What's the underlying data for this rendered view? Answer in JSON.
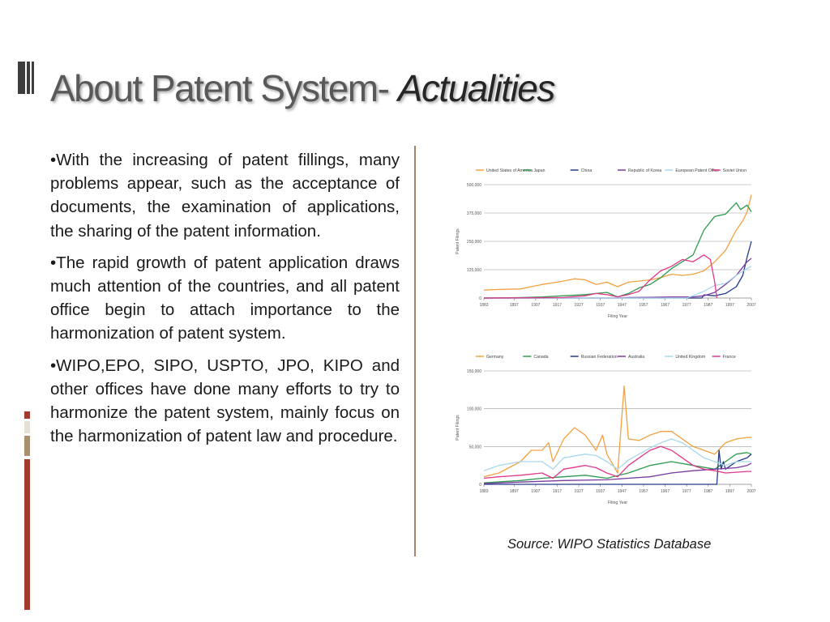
{
  "slide": {
    "title_main": "About Patent System- ",
    "title_italic": "Actualities",
    "bullets": [
      "•With the increasing of patent fillings, many problems appear, such as the acceptance of documents, the examination of applications, the sharing of the patent information.",
      "•The rapid growth of patent application draws much attention of the countries, and all patent office begin to attach importance to the harmonization of patent system.",
      "•WIPO,EPO, SIPO, USPTO, JPO, KIPO and other offices have done many efforts to try to harmonize the patent system, mainly focus on the harmonization of patent law and procedure."
    ],
    "source": "Source: WIPO Statistics Database",
    "colors": {
      "accent_red": "#a33a2b",
      "accent_tan": "#a89070",
      "divider": "#a9826c"
    }
  },
  "chart_data": [
    {
      "type": "line",
      "xlabel": "Filing Year",
      "ylabel": "Patent Filings",
      "xlim": [
        1883,
        2007
      ],
      "ylim": [
        0,
        500000
      ],
      "yticks": [
        "0",
        "125,000",
        "250,000",
        "375,000",
        "500,000"
      ],
      "ytick_values": [
        0,
        125000,
        250000,
        375000,
        500000
      ],
      "xticks": [
        "1883",
        "1897",
        "1907",
        "1917",
        "1927",
        "1937",
        "1947",
        "1957",
        "1967",
        "1977",
        "1987",
        "1997",
        "2007"
      ],
      "grid": true,
      "legend_position": "top",
      "series": [
        {
          "name": "United States of America",
          "color": "#f4a040",
          "x": [
            1883,
            1890,
            1900,
            1910,
            1917,
            1920,
            1925,
            1930,
            1935,
            1940,
            1945,
            1950,
            1955,
            1960,
            1965,
            1970,
            1975,
            1980,
            1985,
            1990,
            1995,
            2000,
            2003,
            2005,
            2007
          ],
          "y": [
            35000,
            38000,
            40000,
            60000,
            70000,
            75000,
            85000,
            80000,
            60000,
            70000,
            50000,
            70000,
            75000,
            80000,
            90000,
            105000,
            100000,
            105000,
            120000,
            160000,
            210000,
            300000,
            340000,
            380000,
            455000
          ]
        },
        {
          "name": "Japan",
          "color": "#2e9a4e",
          "x": [
            1883,
            1900,
            1910,
            1920,
            1930,
            1935,
            1940,
            1945,
            1950,
            1955,
            1960,
            1965,
            1970,
            1975,
            1980,
            1985,
            1990,
            1995,
            2000,
            2002,
            2005,
            2007
          ],
          "y": [
            0,
            2000,
            5000,
            10000,
            15000,
            20000,
            25000,
            5000,
            20000,
            45000,
            60000,
            90000,
            130000,
            160000,
            190000,
            300000,
            360000,
            370000,
            420000,
            390000,
            410000,
            380000
          ]
        },
        {
          "name": "China",
          "color": "#263a8a",
          "x": [
            1883,
            1984,
            1985,
            1990,
            1995,
            2000,
            2003,
            2005,
            2007
          ],
          "y": [
            0,
            0,
            14000,
            10000,
            20000,
            50000,
            100000,
            180000,
            250000
          ]
        },
        {
          "name": "Republic of Korea",
          "color": "#7a3aa0",
          "x": [
            1883,
            1945,
            1950,
            1960,
            1970,
            1980,
            1985,
            1990,
            1995,
            2000,
            2005,
            2007
          ],
          "y": [
            0,
            0,
            2000,
            3000,
            5000,
            5000,
            10000,
            25000,
            60000,
            100000,
            160000,
            175000
          ]
        },
        {
          "name": "European Patent Office",
          "color": "#a8d8ee",
          "x": [
            1883,
            1977,
            1978,
            1985,
            1990,
            1995,
            2000,
            2005,
            2007
          ],
          "y": [
            0,
            0,
            3000,
            30000,
            55000,
            65000,
            100000,
            130000,
            140000
          ]
        },
        {
          "name": "Soviet Union",
          "color": "#e0388a",
          "x": [
            1883,
            1920,
            1930,
            1935,
            1940,
            1945,
            1950,
            1955,
            1960,
            1965,
            1970,
            1975,
            1980,
            1985,
            1988,
            1990,
            1991
          ],
          "y": [
            0,
            2000,
            10000,
            20000,
            15000,
            5000,
            15000,
            30000,
            80000,
            120000,
            140000,
            170000,
            160000,
            190000,
            170000,
            70000,
            0
          ]
        }
      ]
    },
    {
      "type": "line",
      "xlabel": "Filing Year",
      "ylabel": "Patent Filings",
      "xlim": [
        1883,
        2007
      ],
      "ylim": [
        0,
        150000
      ],
      "yticks": [
        "0",
        "50,000",
        "100,000",
        "150,000"
      ],
      "ytick_values": [
        0,
        50000,
        100000,
        150000
      ],
      "xticks": [
        "1883",
        "1897",
        "1907",
        "1917",
        "1927",
        "1937",
        "1947",
        "1957",
        "1967",
        "1977",
        "1987",
        "1997",
        "2007"
      ],
      "grid": true,
      "legend_position": "top",
      "series": [
        {
          "name": "Germany",
          "color": "#f4a040",
          "x": [
            1883,
            1890,
            1900,
            1905,
            1910,
            1913,
            1915,
            1920,
            1925,
            1930,
            1935,
            1938,
            1940,
            1945,
            1948,
            1950,
            1955,
            1960,
            1965,
            1970,
            1975,
            1980,
            1985,
            1990,
            1995,
            2000,
            2005,
            2007
          ],
          "y": [
            10000,
            15000,
            30000,
            45000,
            45000,
            55000,
            30000,
            60000,
            75000,
            65000,
            45000,
            65000,
            40000,
            15000,
            130000,
            60000,
            58000,
            65000,
            70000,
            70000,
            60000,
            50000,
            45000,
            40000,
            55000,
            60000,
            62000,
            62000
          ]
        },
        {
          "name": "Canada",
          "color": "#2e9a4e",
          "x": [
            1883,
            1900,
            1910,
            1920,
            1930,
            1940,
            1950,
            1960,
            1970,
            1980,
            1990,
            1995,
            2000,
            2005,
            2007
          ],
          "y": [
            2000,
            5000,
            8000,
            10000,
            12000,
            8000,
            15000,
            25000,
            30000,
            25000,
            20000,
            30000,
            40000,
            42000,
            40000
          ]
        },
        {
          "name": "Russian Federation",
          "color": "#263a8a",
          "x": [
            1883,
            1991,
            1992,
            1993,
            1994,
            1995,
            2000,
            2005,
            2007
          ],
          "y": [
            0,
            0,
            45000,
            20000,
            30000,
            20000,
            30000,
            35000,
            40000
          ]
        },
        {
          "name": "Australia",
          "color": "#7a3aa0",
          "x": [
            1883,
            1900,
            1920,
            1940,
            1950,
            1960,
            1970,
            1980,
            1990,
            2000,
            2005,
            2007
          ],
          "y": [
            1000,
            3000,
            5000,
            6000,
            8000,
            10000,
            15000,
            18000,
            20000,
            22000,
            25000,
            28000
          ]
        },
        {
          "name": "United Kingdom",
          "color": "#a8d8ee",
          "x": [
            1883,
            1890,
            1900,
            1910,
            1915,
            1920,
            1930,
            1935,
            1940,
            1945,
            1950,
            1955,
            1960,
            1965,
            1970,
            1975,
            1980,
            1985,
            1990,
            1995,
            2000,
            2005,
            2007
          ],
          "y": [
            18000,
            25000,
            30000,
            30000,
            20000,
            35000,
            40000,
            38000,
            30000,
            20000,
            32000,
            40000,
            48000,
            55000,
            60000,
            55000,
            45000,
            35000,
            30000,
            25000,
            30000,
            30000,
            30000
          ]
        },
        {
          "name": "France",
          "color": "#e0388a",
          "x": [
            1883,
            1890,
            1900,
            1910,
            1915,
            1920,
            1930,
            1935,
            1940,
            1945,
            1950,
            1955,
            1960,
            1965,
            1970,
            1975,
            1980,
            1985,
            1990,
            1995,
            2000,
            2005,
            2007
          ],
          "y": [
            8000,
            10000,
            12000,
            15000,
            8000,
            20000,
            25000,
            22000,
            15000,
            10000,
            25000,
            35000,
            45000,
            50000,
            45000,
            35000,
            25000,
            20000,
            18000,
            15000,
            16000,
            17000,
            17000
          ]
        }
      ]
    }
  ]
}
